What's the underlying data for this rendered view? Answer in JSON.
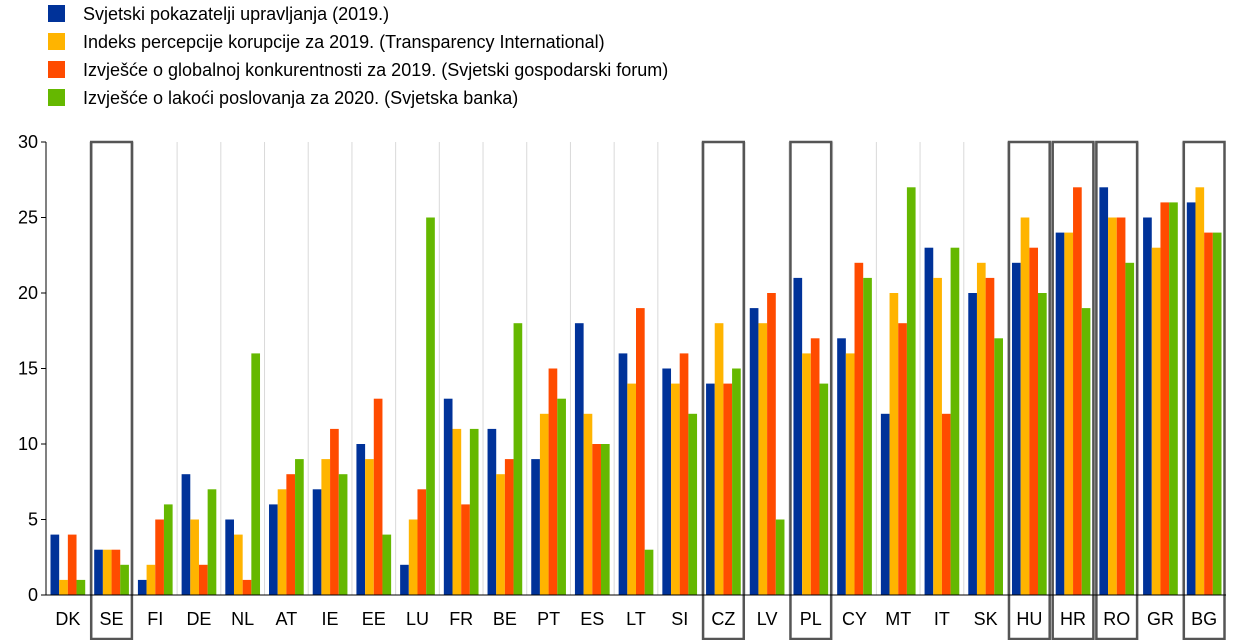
{
  "chart_data": {
    "type": "bar",
    "title": "",
    "xlabel": "",
    "ylabel": "",
    "ylim": [
      0,
      30
    ],
    "yticks": [
      0,
      5,
      10,
      15,
      20,
      25,
      30
    ],
    "grid": "vertical separators between categories",
    "legend_position": "top-left",
    "categories": [
      "DK",
      "SE",
      "FI",
      "DE",
      "NL",
      "AT",
      "IE",
      "EE",
      "LU",
      "FR",
      "BE",
      "PT",
      "ES",
      "LT",
      "SI",
      "CZ",
      "LV",
      "PL",
      "CY",
      "MT",
      "IT",
      "SK",
      "HU",
      "HR",
      "RO",
      "GR",
      "BG"
    ],
    "highlighted_categories": [
      "SE",
      "CZ",
      "PL",
      "HU",
      "HR",
      "RO",
      "BG"
    ],
    "series": [
      {
        "name": "Svjetski pokazatelji upravljanja (2019.)",
        "color": "#003299",
        "values": [
          4,
          3,
          1,
          8,
          5,
          6,
          7,
          10,
          2,
          13,
          11,
          9,
          18,
          16,
          15,
          14,
          19,
          21,
          17,
          12,
          23,
          20,
          22,
          24,
          27,
          25,
          26
        ]
      },
      {
        "name": "Indeks percepcije korupcije za 2019. (Transparency International)",
        "color": "#FFB400",
        "values": [
          1,
          3,
          2,
          5,
          4,
          7,
          9,
          9,
          5,
          11,
          8,
          12,
          12,
          14,
          14,
          18,
          18,
          16,
          16,
          20,
          21,
          22,
          25,
          24,
          25,
          23,
          27
        ]
      },
      {
        "name": "Izvješće o globalnoj konkurentnosti za 2019. (Svjetski gospodarski forum)",
        "color": "#FF4B00",
        "values": [
          4,
          3,
          5,
          2,
          1,
          8,
          11,
          13,
          7,
          6,
          9,
          15,
          10,
          19,
          16,
          14,
          20,
          17,
          22,
          18,
          12,
          21,
          23,
          27,
          25,
          26,
          24
        ]
      },
      {
        "name": "Izvješće o lakoći poslovanja za 2020. (Svjetska banka)",
        "color": "#65B800",
        "values": [
          1,
          2,
          6,
          7,
          16,
          9,
          8,
          4,
          25,
          11,
          18,
          13,
          10,
          3,
          12,
          15,
          5,
          14,
          21,
          27,
          23,
          17,
          20,
          19,
          22,
          26,
          24
        ]
      }
    ]
  }
}
